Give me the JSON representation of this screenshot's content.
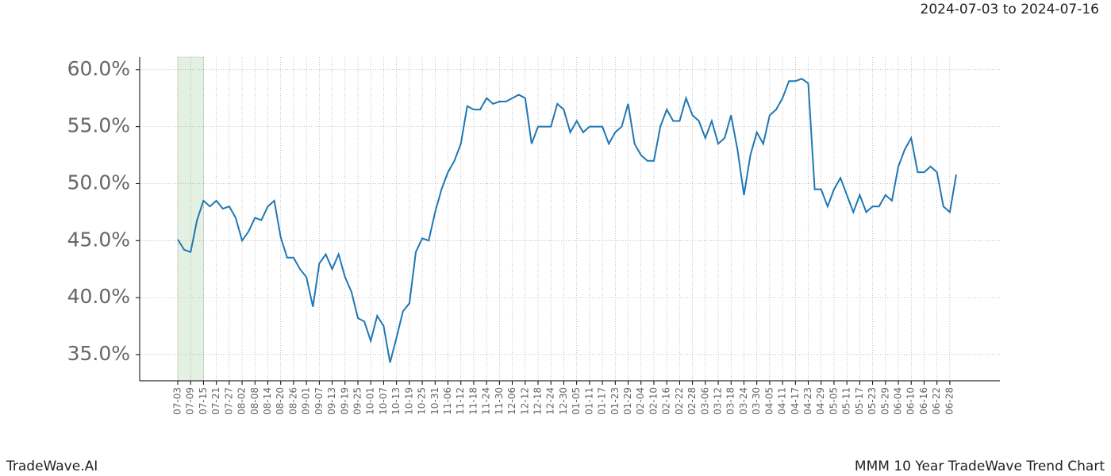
{
  "chart_data": {
    "type": "line",
    "subtitle": "2024-07-03 to 2024-07-16",
    "categories": [
      "07-03",
      null,
      "07-09",
      null,
      "07-15",
      null,
      "07-21",
      null,
      "07-27",
      null,
      "08-02",
      null,
      "08-08",
      null,
      "08-14",
      null,
      "08-20",
      null,
      "08-26",
      null,
      "09-01",
      null,
      "09-07",
      null,
      "09-13",
      null,
      "09-19",
      null,
      "09-25",
      null,
      "10-01",
      null,
      "10-07",
      null,
      "10-13",
      null,
      "10-19",
      null,
      "10-25",
      null,
      "10-31",
      null,
      "11-06",
      null,
      "11-12",
      null,
      "11-18",
      null,
      "11-24",
      null,
      "11-30",
      null,
      "12-06",
      null,
      "12-12",
      null,
      "12-18",
      null,
      "12-24",
      null,
      "12-30",
      null,
      "01-05",
      null,
      "01-11",
      null,
      "01-17",
      null,
      "01-23",
      null,
      "01-29",
      null,
      "02-04",
      null,
      "02-10",
      null,
      "02-16",
      null,
      "02-22",
      null,
      "02-28",
      null,
      "03-06",
      null,
      "03-12",
      null,
      "03-18",
      null,
      "03-24",
      null,
      "03-30",
      null,
      "04-05",
      null,
      "04-11",
      null,
      "04-17",
      null,
      "04-23",
      null,
      "04-29",
      null,
      "05-05",
      null,
      "05-11",
      null,
      "05-17",
      null,
      "05-23",
      null,
      "05-29",
      null,
      "06-04",
      null,
      "06-10",
      null,
      "06-16",
      null,
      "06-22",
      null,
      "06-28",
      null
    ],
    "values": [
      45.1,
      44.2,
      44.0,
      46.8,
      48.5,
      48.0,
      48.5,
      47.8,
      48.0,
      47.0,
      45.0,
      45.8,
      47.0,
      46.8,
      48.0,
      48.5,
      45.3,
      43.5,
      43.5,
      42.5,
      41.8,
      39.2,
      43.0,
      43.8,
      42.5,
      43.8,
      41.8,
      40.5,
      38.2,
      37.9,
      36.2,
      38.4,
      37.5,
      34.3,
      36.5,
      38.8,
      39.5,
      44.0,
      45.2,
      45.0,
      47.5,
      49.5,
      51.0,
      52.0,
      53.5,
      56.8,
      56.5,
      56.5,
      57.5,
      57.0,
      57.2,
      57.2,
      57.5,
      57.8,
      57.5,
      53.5,
      55.0,
      55.0,
      55.0,
      57.0,
      56.5,
      54.5,
      55.5,
      54.5,
      55.0,
      55.0,
      55.0,
      53.5,
      54.5,
      55.0,
      57.0,
      53.5,
      52.5,
      52.0,
      52.0,
      55.0,
      56.5,
      55.5,
      55.5,
      57.5,
      56.0,
      55.5,
      54.0,
      55.5,
      53.5,
      54.0,
      56.0,
      53.0,
      49.0,
      52.5,
      54.5,
      53.5,
      56.0,
      56.5,
      57.5,
      59.0,
      59.0,
      59.2,
      58.8,
      49.5,
      49.5,
      48.0,
      49.5,
      50.5,
      49.0,
      47.5,
      49.0,
      47.5,
      48.0,
      48.0,
      49.0,
      48.5,
      51.5,
      53.0,
      54.0,
      51.0,
      51.0,
      51.5,
      51.0,
      48.0,
      47.5,
      50.8
    ],
    "color": "#1f77b4",
    "ylim": [
      32.7,
      61.1
    ],
    "yticks": [
      {
        "value": 35,
        "label": "35.0%"
      },
      {
        "value": 40,
        "label": "40.0%"
      },
      {
        "value": 45,
        "label": "45.0%"
      },
      {
        "value": 50,
        "label": "50.0%"
      },
      {
        "value": 55,
        "label": "55.0%"
      },
      {
        "value": 60,
        "label": "60.0%"
      }
    ],
    "grid": true,
    "highlight": {
      "from": "07-03",
      "to": "07-15",
      "color": "#e3f1e3"
    }
  },
  "footer": {
    "left": "TradeWave.AI",
    "right": "MMM 10 Year TradeWave Trend Chart"
  }
}
